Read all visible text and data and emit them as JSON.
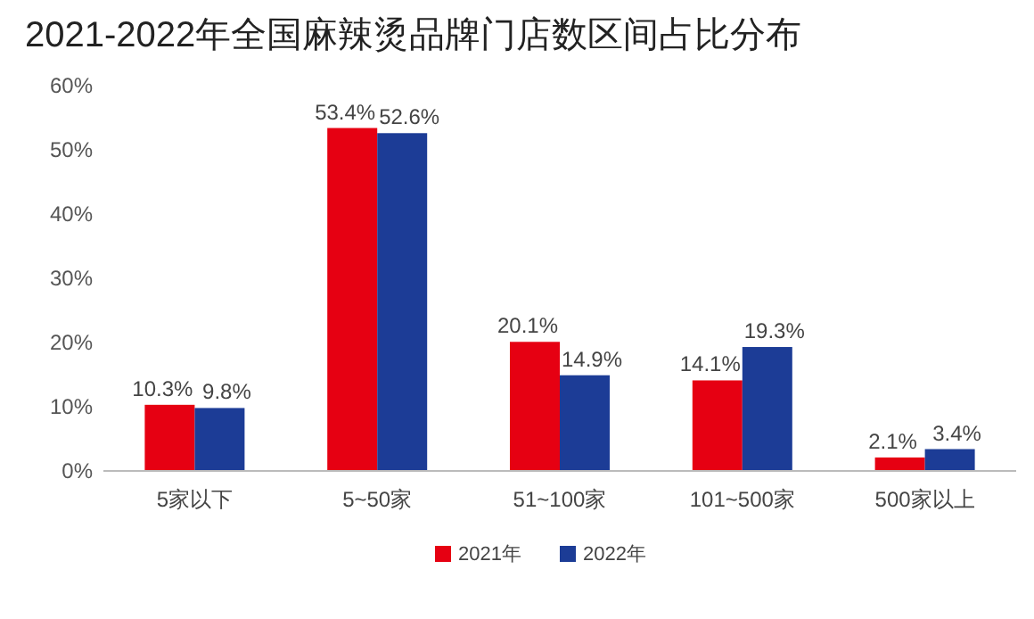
{
  "chart_data": {
    "type": "bar",
    "title": "2021-2022年全国麻辣烫品牌门店数区间占比分布",
    "categories": [
      "5家以下",
      "5~50家",
      "51~100家",
      "101~500家",
      "500家以上"
    ],
    "series": [
      {
        "name": "2021年",
        "color": "#e60012",
        "values": [
          10.3,
          53.4,
          20.1,
          14.1,
          2.1
        ],
        "value_labels": [
          "10.3%",
          "53.4%",
          "20.1%",
          "14.1%",
          "2.1%"
        ]
      },
      {
        "name": "2022年",
        "color": "#1c3c96",
        "values": [
          9.8,
          52.6,
          14.9,
          19.3,
          3.4
        ],
        "value_labels": [
          "9.8%",
          "52.6%",
          "14.9%",
          "19.3%",
          "3.4%"
        ]
      }
    ],
    "ylim": [
      0,
      60
    ],
    "yticks": [
      {
        "value": 0,
        "label": "0%"
      },
      {
        "value": 10,
        "label": "10%"
      },
      {
        "value": 20,
        "label": "20%"
      },
      {
        "value": 30,
        "label": "30%"
      },
      {
        "value": 40,
        "label": "40%"
      },
      {
        "value": 50,
        "label": "50%"
      },
      {
        "value": 60,
        "label": "60%"
      }
    ],
    "legend": "bottom"
  }
}
